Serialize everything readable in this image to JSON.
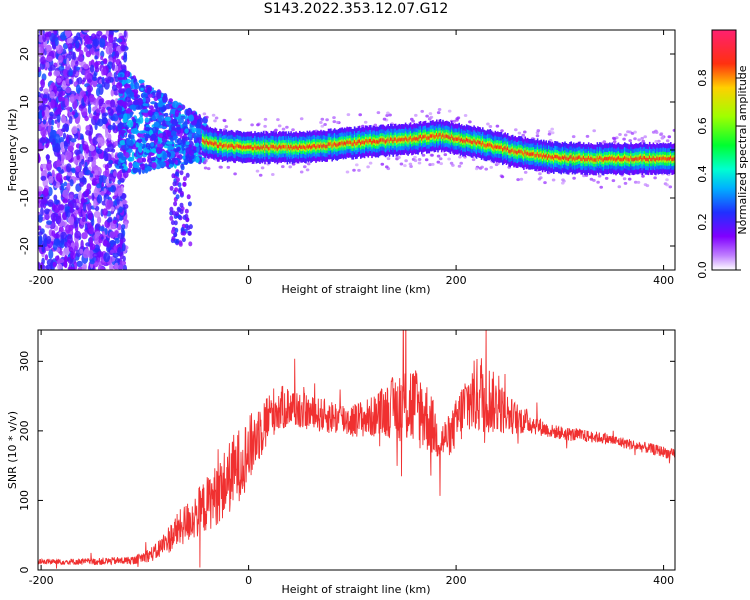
{
  "title": "S143.2022.353.12.07.G12",
  "chart_data": [
    {
      "type": "heatmap",
      "xlabel": "Height of straight line (km)",
      "ylabel": "Frequency (Hz)",
      "xlim": [
        -203,
        411
      ],
      "ylim": [
        -25,
        25
      ],
      "xticks": [
        -200,
        0,
        200,
        400
      ],
      "yticks": [
        -20,
        -10,
        0,
        10,
        20
      ],
      "colorbar": {
        "label": "Normalized spectral amplitude",
        "range": [
          0,
          1
        ],
        "ticks": [
          0.0,
          0.2,
          0.4,
          0.6,
          0.8
        ],
        "colors": [
          "#ffffff",
          "#8000ff",
          "#2040ff",
          "#00e0ff",
          "#00ff40",
          "#c0ff00",
          "#ffb000",
          "#ff2020",
          "#ff2080"
        ]
      },
      "ridge": {
        "x": [
          -45,
          -30,
          0,
          50,
          100,
          150,
          185,
          220,
          260,
          290,
          330,
          380,
          411
        ],
        "freq": [
          2,
          1,
          0.5,
          0.5,
          1.5,
          2.2,
          3,
          1.5,
          -0.5,
          -1.5,
          -1.8,
          -1.8,
          -1.8
        ]
      }
    },
    {
      "type": "line",
      "xlabel": "Height of straight line (km)",
      "ylabel": "SNR (10 * v/v)",
      "xlim": [
        -203,
        411
      ],
      "ylim": [
        0,
        345
      ],
      "xticks": [
        -200,
        0,
        200,
        400
      ],
      "yticks": [
        0,
        100,
        200,
        300
      ],
      "color": "#f03030",
      "series": [
        {
          "x": [
            -203,
            -150,
            -110,
            -90,
            -70,
            -50,
            -30,
            -15,
            0,
            10,
            25,
            40,
            60,
            80,
            100,
            120,
            140,
            155,
            170,
            185,
            195,
            210,
            225,
            240,
            255,
            275,
            290,
            310,
            340,
            370,
            400,
            411
          ],
          "y": [
            12,
            12,
            14,
            25,
            55,
            80,
            110,
            140,
            170,
            200,
            230,
            235,
            225,
            220,
            215,
            220,
            235,
            240,
            225,
            185,
            195,
            240,
            255,
            235,
            220,
            210,
            200,
            195,
            190,
            180,
            170,
            165
          ],
          "spread": [
            4,
            5,
            6,
            12,
            25,
            35,
            45,
            55,
            50,
            45,
            35,
            30,
            25,
            25,
            25,
            30,
            45,
            65,
            55,
            30,
            30,
            50,
            60,
            40,
            25,
            15,
            10,
            10,
            8,
            8,
            8,
            8
          ]
        }
      ]
    }
  ]
}
